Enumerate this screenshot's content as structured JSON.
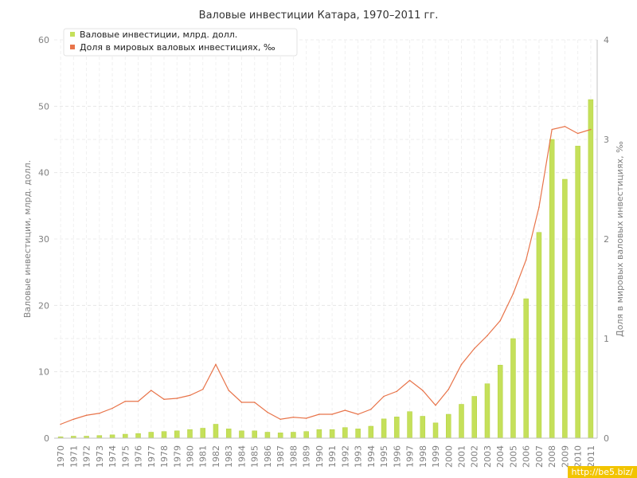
{
  "chart_data": {
    "type": "bar",
    "title": "Валовые инвестиции Катара, 1970–2011 гг.",
    "ylabel": "Валовые инвестиции, млрд. долл.",
    "y2label": "Доля в мировых валовых инвестициях, ‰",
    "ylim": [
      0,
      60
    ],
    "y2lim": [
      0,
      4
    ],
    "yticks": [
      0,
      10,
      20,
      30,
      40,
      50,
      60
    ],
    "y2ticks": [
      0,
      1,
      2,
      3,
      4
    ],
    "grid": true,
    "legend_position": "top-left",
    "categories": [
      "1970",
      "1971",
      "1972",
      "1973",
      "1974",
      "1975",
      "1976",
      "1977",
      "1978",
      "1979",
      "1980",
      "1981",
      "1982",
      "1983",
      "1984",
      "1985",
      "1986",
      "1987",
      "1988",
      "1989",
      "1990",
      "1991",
      "1992",
      "1993",
      "1994",
      "1995",
      "1996",
      "1997",
      "1998",
      "1999",
      "2000",
      "2001",
      "2002",
      "2003",
      "2004",
      "2005",
      "2006",
      "2007",
      "2008",
      "2009",
      "2010",
      "2011"
    ],
    "series": [
      {
        "name": "Валовые инвестиции, млрд. долл.",
        "type": "bar",
        "axis": "left",
        "color": "#c5e05a",
        "values": [
          0.2,
          0.3,
          0.3,
          0.4,
          0.5,
          0.6,
          0.7,
          0.9,
          1.0,
          1.1,
          1.3,
          1.5,
          2.1,
          1.4,
          1.1,
          1.1,
          0.9,
          0.8,
          0.9,
          1.0,
          1.3,
          1.3,
          1.6,
          1.4,
          1.8,
          2.9,
          3.2,
          4.0,
          3.3,
          2.3,
          3.6,
          5.1,
          6.3,
          8.2,
          11.0,
          15.0,
          21.0,
          31.0,
          45.0,
          39.0,
          44.0,
          51.0
        ]
      },
      {
        "name": "Доля в мировых валовых инвестициях, ‰",
        "type": "line",
        "axis": "right",
        "color": "#e8744a",
        "values": [
          0.14,
          0.19,
          0.23,
          0.25,
          0.3,
          0.37,
          0.37,
          0.48,
          0.39,
          0.4,
          0.43,
          0.49,
          0.74,
          0.48,
          0.36,
          0.36,
          0.26,
          0.19,
          0.21,
          0.2,
          0.24,
          0.24,
          0.28,
          0.24,
          0.29,
          0.42,
          0.47,
          0.58,
          0.48,
          0.33,
          0.49,
          0.74,
          0.9,
          1.03,
          1.18,
          1.45,
          1.79,
          2.32,
          3.1,
          3.13,
          3.06,
          3.1
        ]
      }
    ]
  },
  "watermark": "http://be5.biz/"
}
